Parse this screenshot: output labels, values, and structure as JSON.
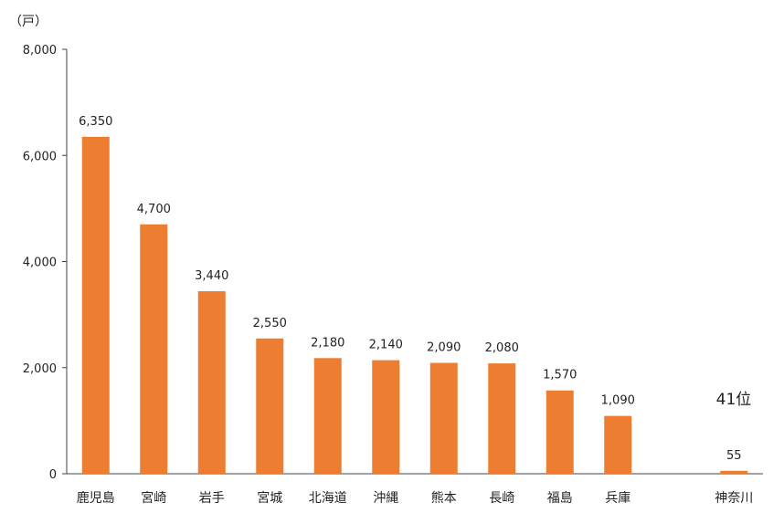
{
  "chart_data": {
    "type": "bar",
    "unit": "（戸）",
    "categories": [
      "鹿児島",
      "宮崎",
      "岩手",
      "宮城",
      "北海道",
      "沖縄",
      "熊本",
      "長崎",
      "福島",
      "兵庫",
      "",
      "神奈川"
    ],
    "values": [
      6350,
      4700,
      3440,
      2550,
      2180,
      2140,
      2090,
      2080,
      1570,
      1090,
      null,
      55
    ],
    "data_labels": [
      "6,350",
      "4,700",
      "3,440",
      "2,550",
      "2,180",
      "2,140",
      "2,090",
      "2,080",
      "1,570",
      "1,090",
      "",
      "55"
    ],
    "ylim": [
      0,
      8000
    ],
    "yticks": [
      0,
      2000,
      4000,
      6000,
      8000
    ],
    "ytick_labels": [
      "0",
      "2,000",
      "4,000",
      "6,000",
      "8,000"
    ],
    "annotation": "41位",
    "bar_color": "#ED7D31",
    "grid": false
  }
}
